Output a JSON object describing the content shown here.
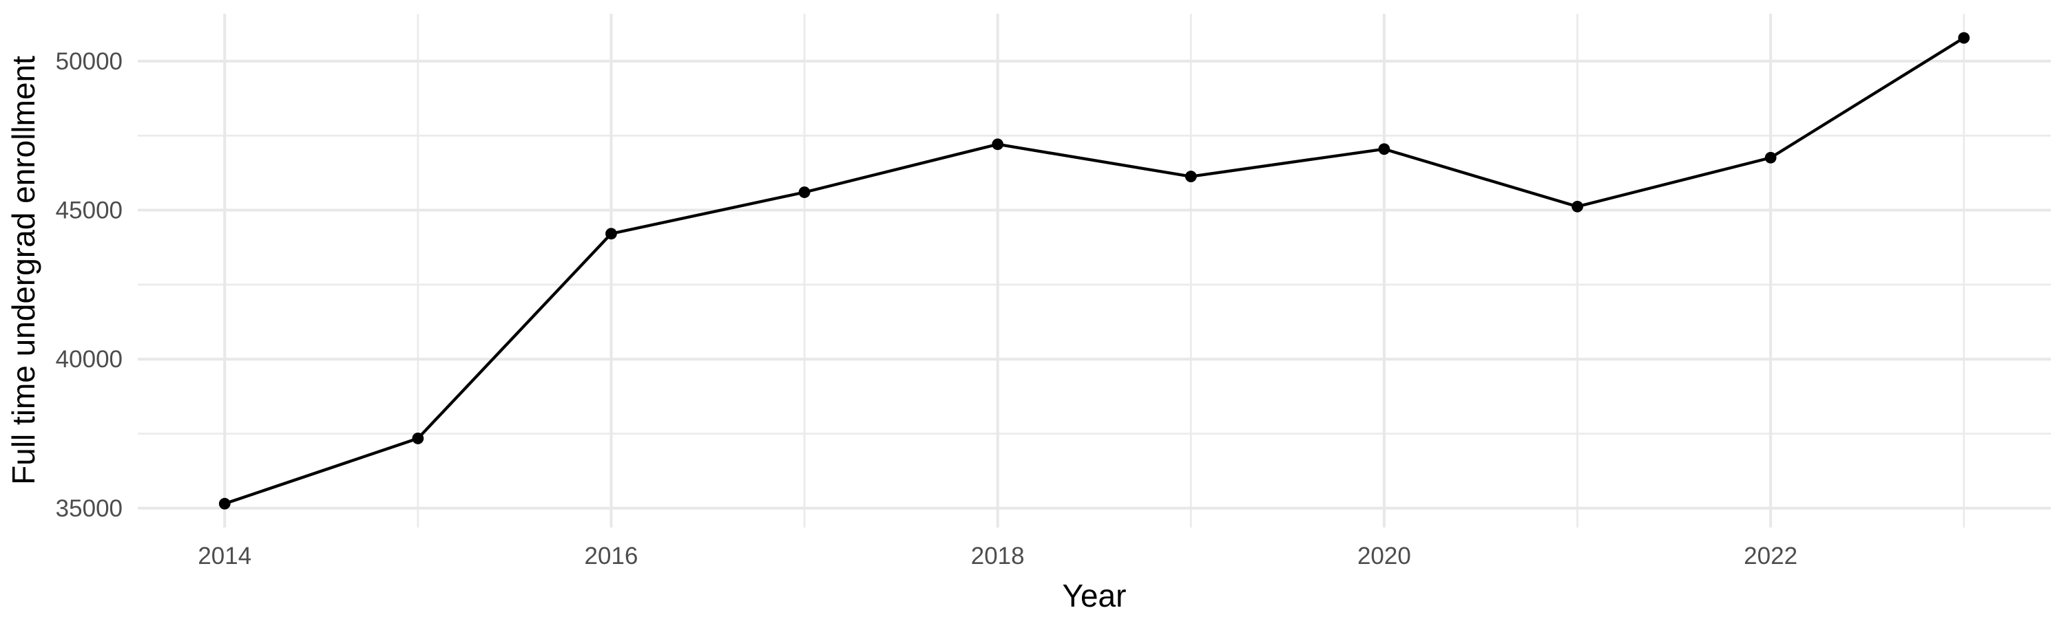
{
  "figure": {
    "background": "#FFFFFF"
  },
  "chart_data": {
    "type": "line",
    "title": "",
    "xlabel": "Year",
    "ylabel": "Full time undergrad enrollment",
    "x": [
      2014,
      2015,
      2016,
      2017,
      2018,
      2019,
      2020,
      2021,
      2022,
      2023
    ],
    "values": [
      35150,
      37340,
      44210,
      45600,
      47210,
      46130,
      47050,
      45120,
      46760,
      50780
    ],
    "series_name": "Full time undergrad enrollment",
    "x_major_ticks": [
      2014,
      2016,
      2018,
      2020,
      2022
    ],
    "x_minor_gridlines": [
      2015,
      2017,
      2019,
      2021,
      2023
    ],
    "y_major_ticks": [
      35000,
      40000,
      45000,
      50000
    ],
    "y_minor_gridlines": [
      37500,
      42500,
      47500
    ],
    "xlim": [
      2013.55,
      2023.45
    ],
    "ylim": [
      34350,
      51590
    ],
    "grid": "major-and-minor",
    "legend": "none",
    "point_marker": "filled-circle",
    "colors": {
      "line": "#000000",
      "point": "#000000",
      "grid_major": "#E8E8E8",
      "grid_minor": "#EBEBEB",
      "tick_label": "#4D4D4D",
      "axis_title": "#000000",
      "background": "#FFFFFF"
    }
  }
}
